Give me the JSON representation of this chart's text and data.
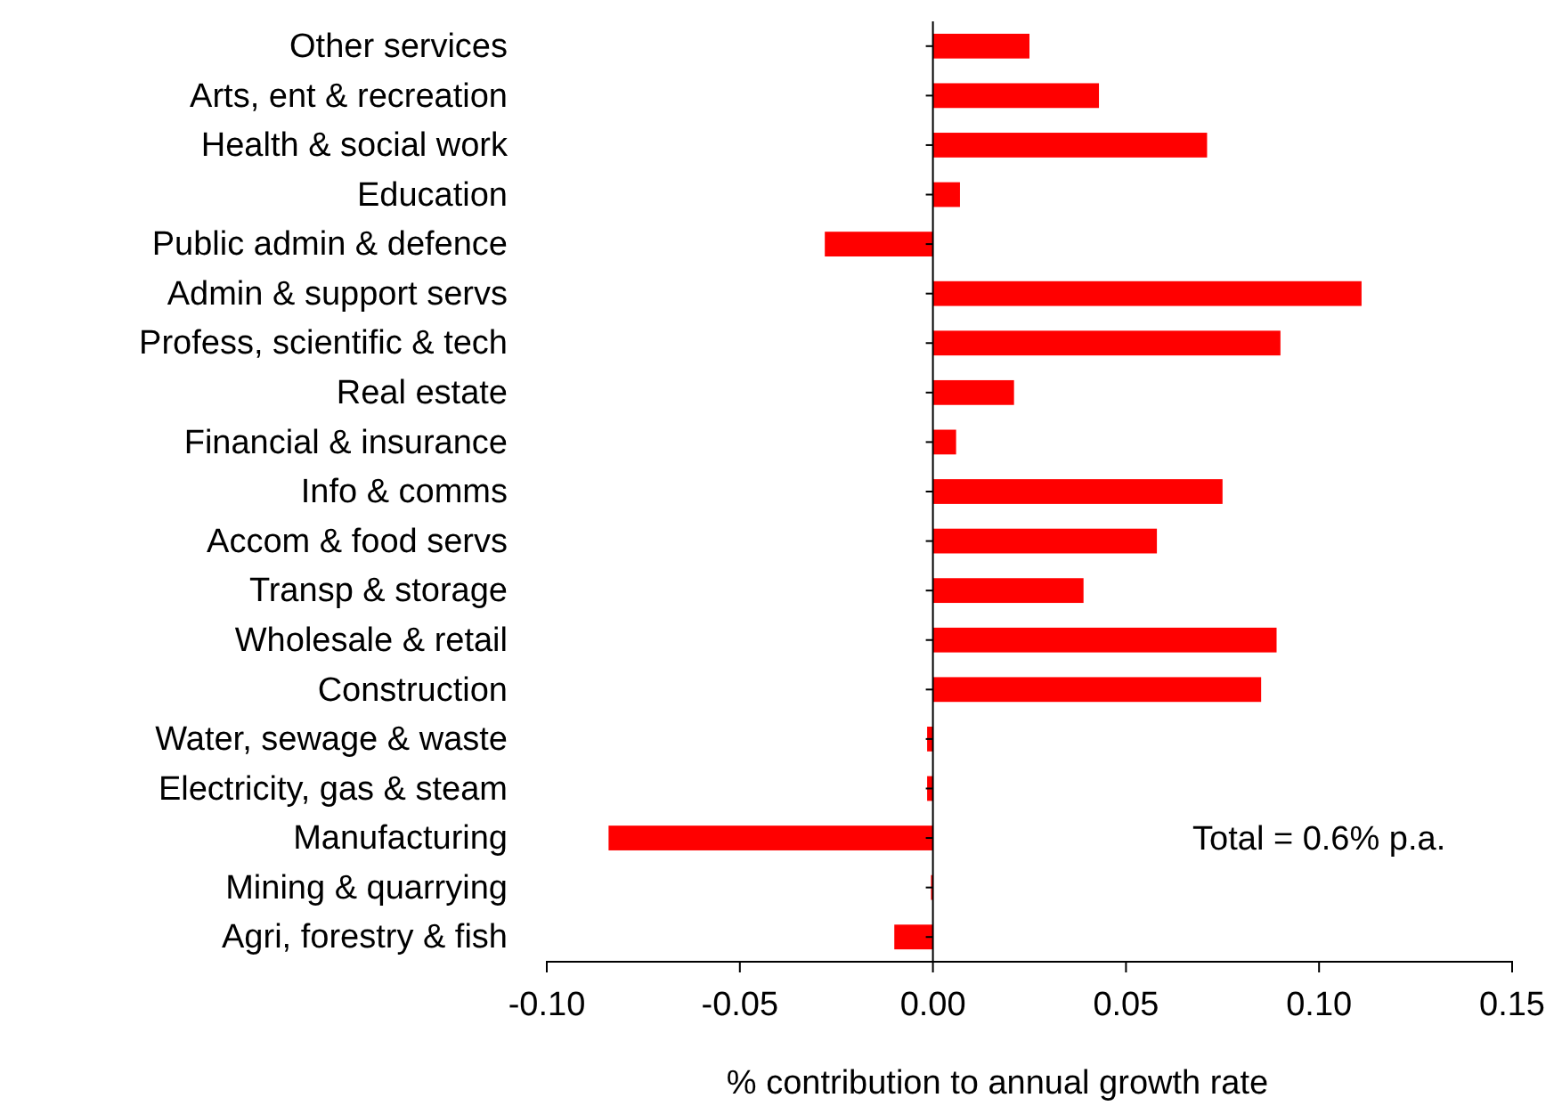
{
  "chart_data": {
    "type": "bar",
    "orientation": "horizontal",
    "categories": [
      "Other services",
      "Arts, ent & recreation",
      "Health & social work",
      "Education",
      "Public admin & defence",
      "Admin & support servs",
      "Profess, scientific & tech",
      "Real estate",
      "Financial & insurance",
      "Info & comms",
      "Accom & food servs",
      "Transp & storage",
      "Wholesale & retail",
      "Construction",
      "Water, sewage & waste",
      "Electricity, gas & steam",
      "Manufacturing",
      "Mining & quarrying",
      "Agri, forestry & fish"
    ],
    "values": [
      0.025,
      0.043,
      0.071,
      0.007,
      -0.028,
      0.111,
      0.09,
      0.021,
      0.006,
      0.075,
      0.058,
      0.039,
      0.089,
      0.085,
      -0.0015,
      -0.0015,
      -0.084,
      -0.0005,
      -0.01
    ],
    "color": "#ff0000",
    "xlim": [
      -0.1,
      0.15
    ],
    "xticks": [
      {
        "value": -0.1,
        "label": "-0.10"
      },
      {
        "value": -0.05,
        "label": "-0.05"
      },
      {
        "value": 0,
        "label": "0.00"
      },
      {
        "value": 0.05,
        "label": "0.05"
      },
      {
        "value": 0.1,
        "label": "0.10"
      },
      {
        "value": 0.15,
        "label": "0.15"
      }
    ],
    "xlabel": "% contribution to annual growth rate",
    "annotations": [
      "Total = 0.6% p.a."
    ],
    "legend": false
  }
}
